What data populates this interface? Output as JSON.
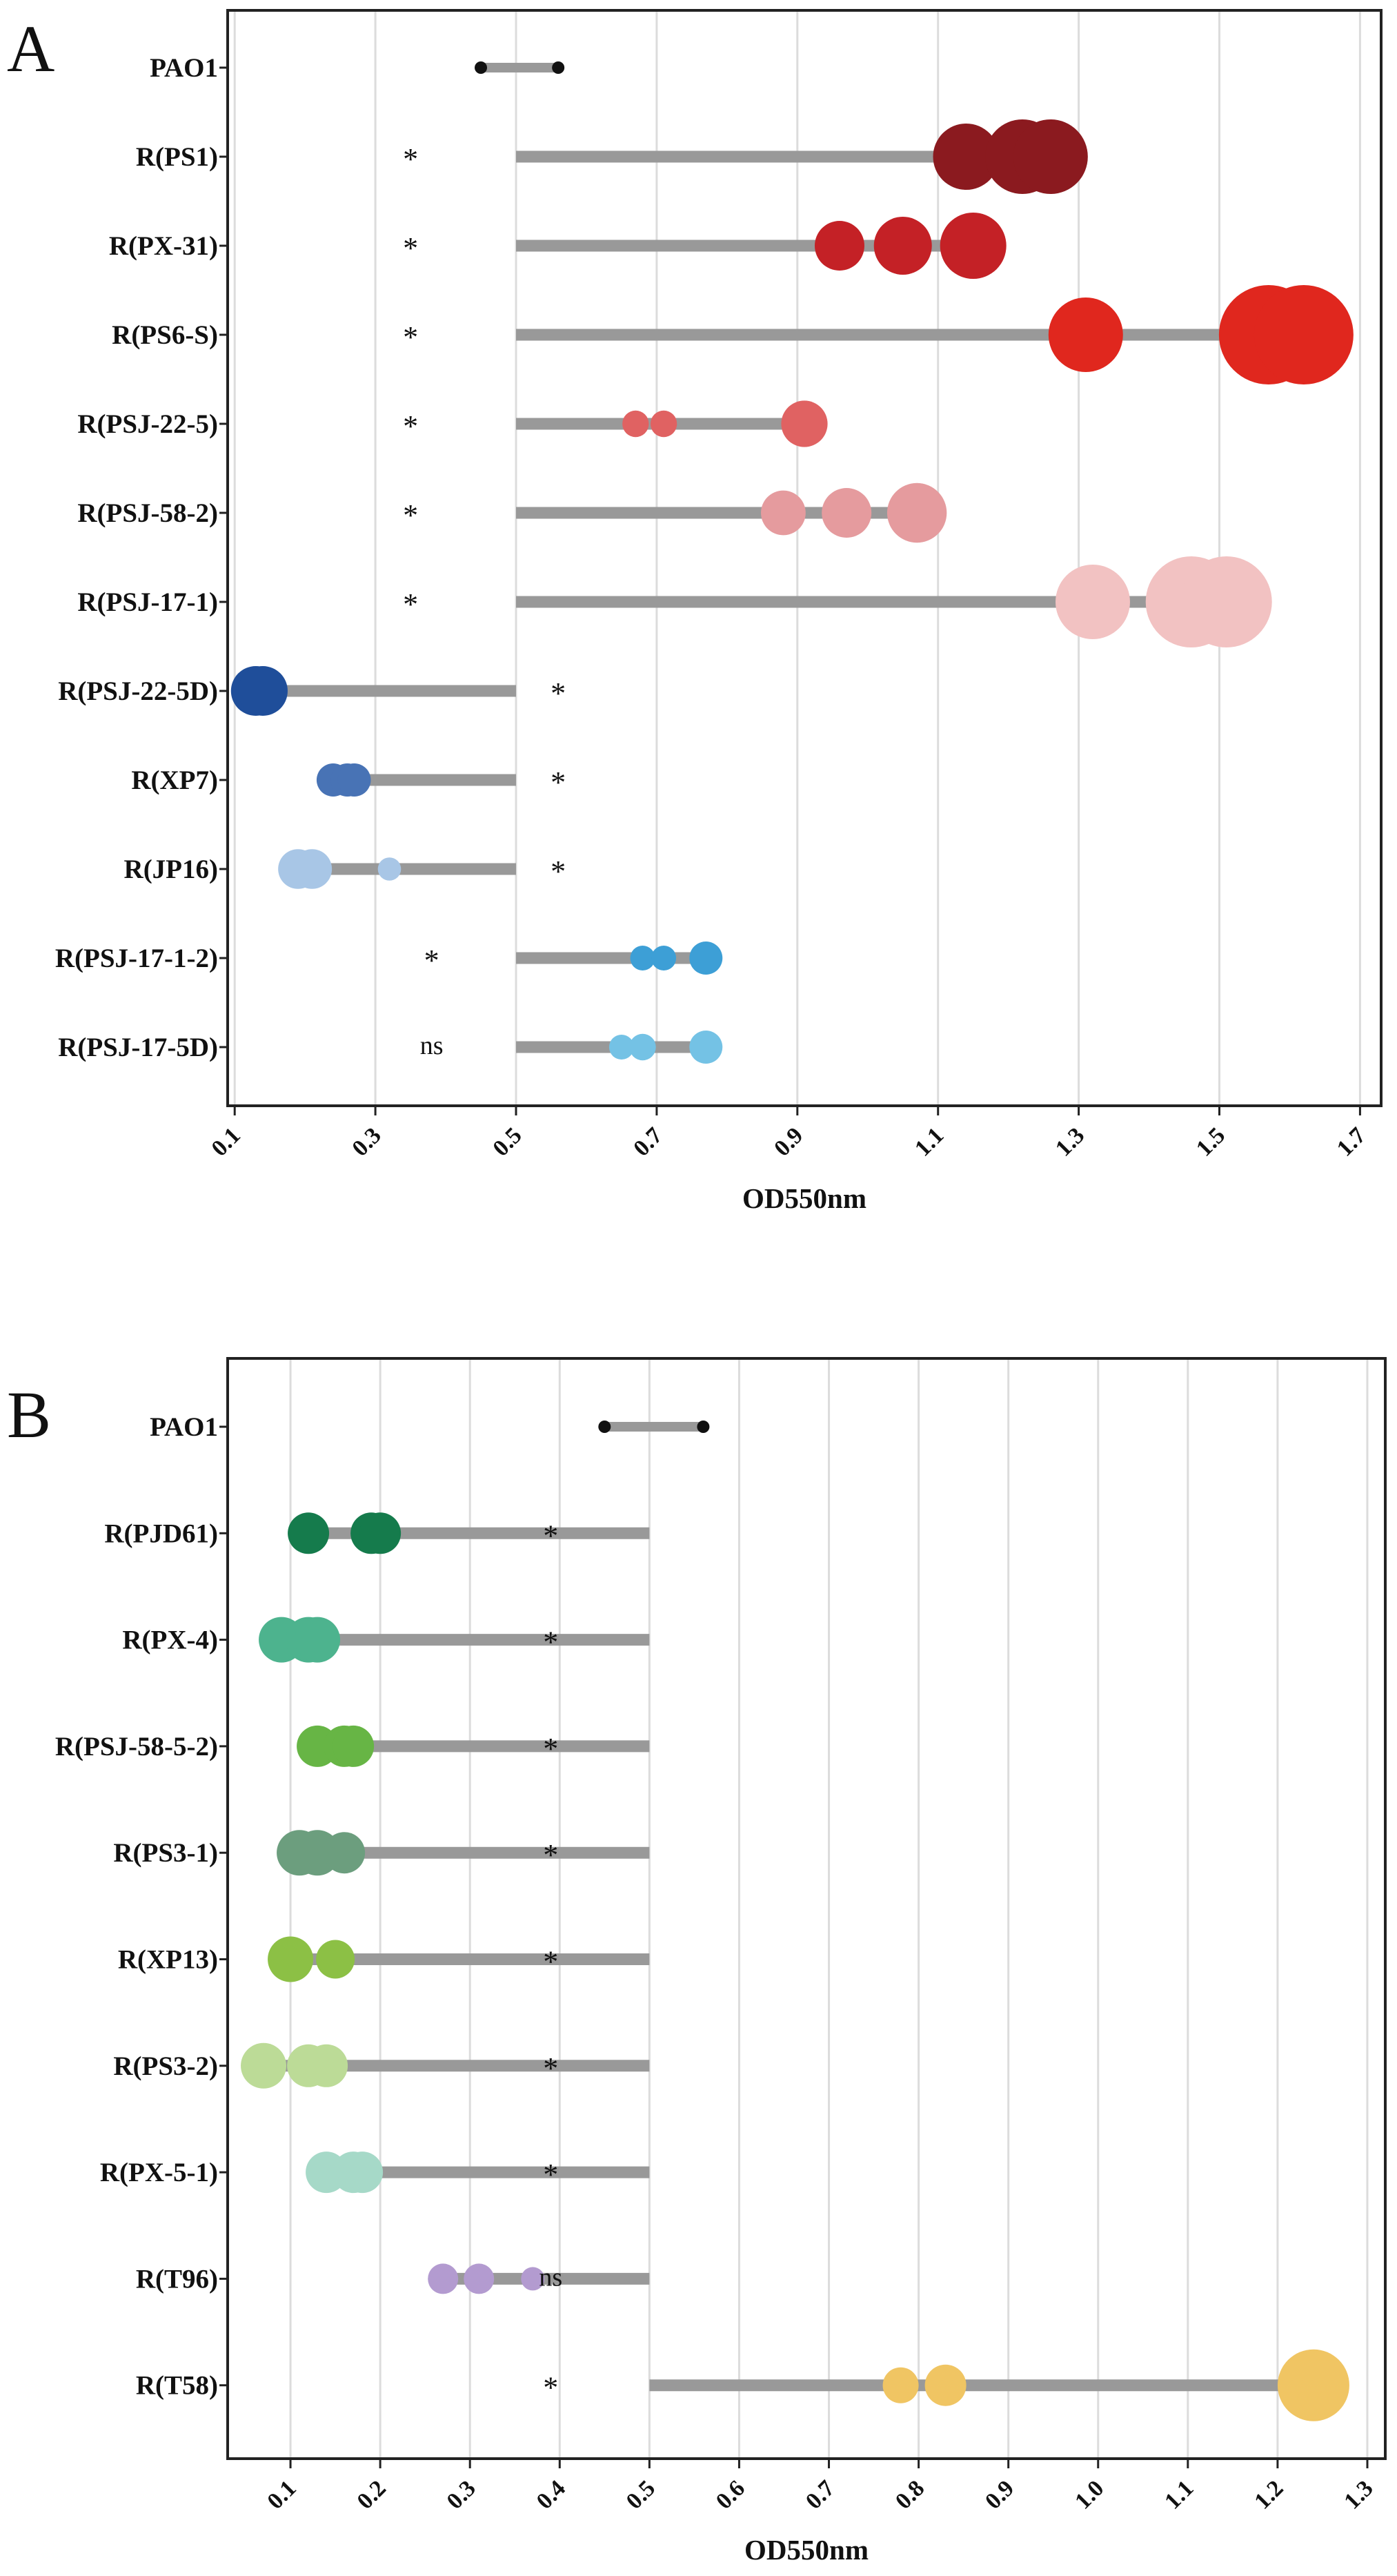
{
  "chart_data": [
    {
      "panel": "A",
      "type": "dumbbell",
      "xlabel": "OD550nm",
      "xlim": [
        0.09,
        1.73
      ],
      "xticks": [
        "0.1",
        "0.3",
        "0.5",
        "0.7",
        "0.9",
        "1.1",
        "1.3",
        "1.5",
        "1.7"
      ],
      "grid": true,
      "reference": 0.5,
      "rows": [
        {
          "label": "PAO1",
          "sig": "",
          "color": "#111111",
          "points": [
            0.45,
            0.56
          ],
          "sizes": [
            1,
            1
          ]
        },
        {
          "label": "R(PS1)",
          "sig": "*",
          "color": "#8B1A1F",
          "points": [
            1.14,
            1.22,
            1.26
          ],
          "sizes": [
            4,
            4.5,
            4.5
          ]
        },
        {
          "label": "R(PX-31)",
          "sig": "*",
          "color": "#C42126",
          "points": [
            0.96,
            1.05,
            1.15
          ],
          "sizes": [
            3,
            3.5,
            4
          ]
        },
        {
          "label": "R(PS6-S)",
          "sig": "*",
          "color": "#E0271E",
          "points": [
            1.31,
            1.57,
            1.62
          ],
          "sizes": [
            4.5,
            6,
            6
          ]
        },
        {
          "label": "R(PSJ-22-5)",
          "sig": "*",
          "color": "#E06262",
          "points": [
            0.67,
            0.71,
            0.91
          ],
          "sizes": [
            1.6,
            1.6,
            2.8
          ]
        },
        {
          "label": "R(PSJ-58-2)",
          "sig": "*",
          "color": "#E59B9E",
          "points": [
            0.88,
            0.97,
            1.07
          ],
          "sizes": [
            2.7,
            3,
            3.6
          ]
        },
        {
          "label": "R(PSJ-17-1)",
          "sig": "*",
          "color": "#F2C2C2",
          "points": [
            1.32,
            1.46,
            1.51
          ],
          "sizes": [
            4.5,
            5.5,
            5.5
          ]
        },
        {
          "label": "R(PSJ-22-5D)",
          "sig": "*",
          "color": "#1F4E9A",
          "points": [
            0.13,
            0.14
          ],
          "sizes": [
            3,
            3
          ]
        },
        {
          "label": "R(XP7)",
          "sig": "*",
          "color": "#4873B5",
          "points": [
            0.24,
            0.26,
            0.27
          ],
          "sizes": [
            2,
            2,
            2
          ]
        },
        {
          "label": "R(JP16)",
          "sig": "*",
          "color": "#A8C6E6",
          "points": [
            0.19,
            0.21,
            0.32
          ],
          "sizes": [
            2.4,
            2.4,
            1.4
          ]
        },
        {
          "label": "R(PSJ-17-1-2)",
          "sig": "*",
          "color": "#3D9FD6",
          "points": [
            0.68,
            0.71,
            0.77
          ],
          "sizes": [
            1.5,
            1.5,
            2
          ]
        },
        {
          "label": "R(PSJ-17-5D)",
          "sig": "ns",
          "color": "#74C2E5",
          "points": [
            0.65,
            0.68,
            0.77
          ],
          "sizes": [
            1.5,
            1.6,
            2
          ]
        }
      ]
    },
    {
      "panel": "B",
      "type": "dumbbell",
      "xlabel": "OD550nm",
      "xlim": [
        0.03,
        1.32
      ],
      "xticks": [
        "0.1",
        "0.2",
        "0.3",
        "0.4",
        "0.5",
        "0.6",
        "0.7",
        "0.8",
        "0.9",
        "1.0",
        "1.1",
        "1.2",
        "1.3"
      ],
      "grid": true,
      "reference": 0.5,
      "rows": [
        {
          "label": "PAO1",
          "sig": "",
          "color": "#111111",
          "points": [
            0.45,
            0.56
          ],
          "sizes": [
            1,
            1
          ]
        },
        {
          "label": "R(PJD61)",
          "sig": "*",
          "color": "#157B4C",
          "points": [
            0.12,
            0.19,
            0.2
          ],
          "sizes": [
            3,
            3,
            3
          ]
        },
        {
          "label": "R(PX-4)",
          "sig": "*",
          "color": "#4DB38E",
          "points": [
            0.09,
            0.12,
            0.13
          ],
          "sizes": [
            3.3,
            3.3,
            3.3
          ]
        },
        {
          "label": "R(PSJ-58-5-2)",
          "sig": "*",
          "color": "#67B545",
          "points": [
            0.13,
            0.16,
            0.17
          ],
          "sizes": [
            3,
            3,
            3
          ]
        },
        {
          "label": "R(PS3-1)",
          "sig": "*",
          "color": "#6C9E7E",
          "points": [
            0.11,
            0.13,
            0.16
          ],
          "sizes": [
            3.3,
            3.3,
            3
          ]
        },
        {
          "label": "R(XP13)",
          "sig": "*",
          "color": "#8CC045",
          "points": [
            0.1,
            0.15
          ],
          "sizes": [
            3.3,
            2.8
          ]
        },
        {
          "label": "R(PS3-2)",
          "sig": "*",
          "color": "#BCDB97",
          "points": [
            0.07,
            0.12,
            0.14
          ],
          "sizes": [
            3.3,
            3.1,
            3.1
          ]
        },
        {
          "label": "R(PX-5-1)",
          "sig": "*",
          "color": "#A6D9C8",
          "points": [
            0.14,
            0.17,
            0.18
          ],
          "sizes": [
            3,
            3,
            3
          ]
        },
        {
          "label": "R(T96)",
          "sig": "ns",
          "color": "#B39BD0",
          "points": [
            0.27,
            0.31,
            0.37
          ],
          "sizes": [
            2.2,
            2.2,
            1.7
          ]
        },
        {
          "label": "R(T58)",
          "sig": "*",
          "color": "#F0C563",
          "points": [
            0.78,
            0.83,
            1.24
          ],
          "sizes": [
            2.6,
            3,
            5.2
          ]
        }
      ]
    }
  ]
}
